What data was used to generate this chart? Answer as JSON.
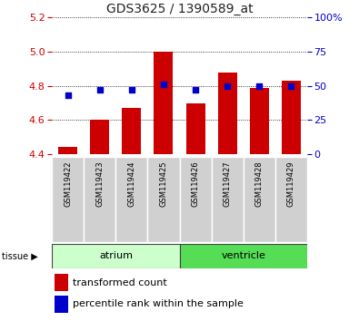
{
  "title": "GDS3625 / 1390589_at",
  "samples": [
    "GSM119422",
    "GSM119423",
    "GSM119424",
    "GSM119425",
    "GSM119426",
    "GSM119427",
    "GSM119428",
    "GSM119429"
  ],
  "transformed_counts": [
    4.44,
    4.6,
    4.67,
    5.0,
    4.7,
    4.88,
    4.79,
    4.83
  ],
  "percentile_ranks": [
    43,
    47,
    47,
    51,
    47,
    50,
    50,
    50
  ],
  "ylim_left": [
    4.4,
    5.2
  ],
  "ylim_right": [
    0,
    100
  ],
  "yticks_left": [
    4.4,
    4.6,
    4.8,
    5.0,
    5.2
  ],
  "yticks_right": [
    0,
    25,
    50,
    75,
    100
  ],
  "ytick_right_labels": [
    "0",
    "25",
    "50",
    "75",
    "100%"
  ],
  "bar_color": "#cc0000",
  "dot_color": "#0000cc",
  "bar_bottom": 4.4,
  "atrium_color": "#ccffcc",
  "ventricle_color": "#55dd55",
  "tissue_label": "tissue",
  "legend_bar_label": "transformed count",
  "legend_dot_label": "percentile rank within the sample",
  "title_color": "#222222",
  "left_axis_color": "#cc0000",
  "right_axis_color": "#0000cc",
  "sample_box_color": "#d0d0d0",
  "fig_width": 3.95,
  "fig_height": 3.54,
  "dpi": 100
}
